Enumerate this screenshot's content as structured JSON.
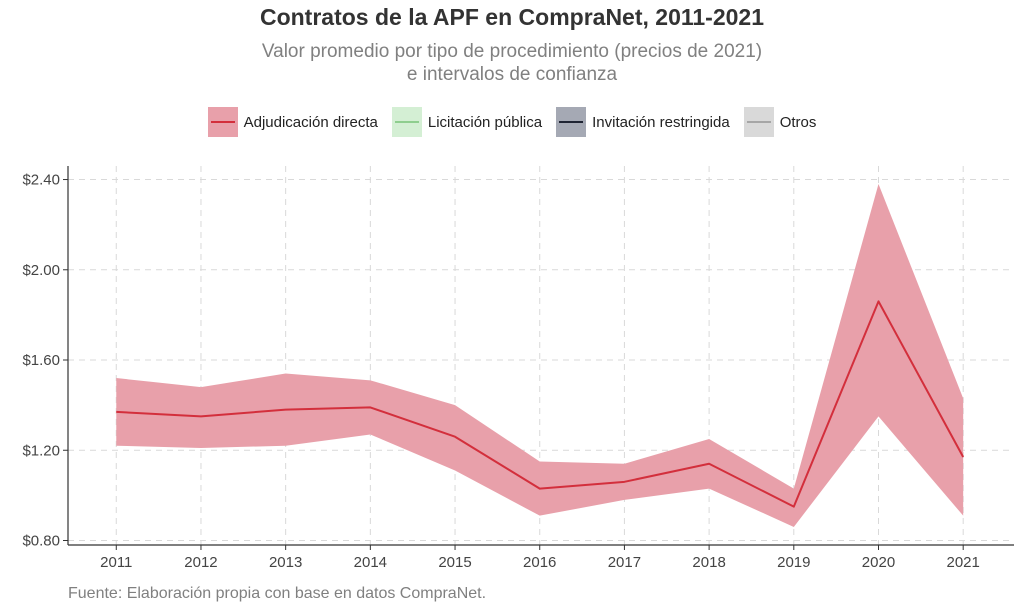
{
  "header": {
    "title": "Contratos de la APF en CompraNet, 2011-2021",
    "subtitle_line1": "Valor promedio por tipo de procedimiento (precios de 2021)",
    "subtitle_line2": "e intervalos de confianza"
  },
  "legend": {
    "items": [
      {
        "label": "Adjudicación directa",
        "fill": "#e8a0aa",
        "line": "#d32f3c"
      },
      {
        "label": "Licitación pública",
        "fill": "#d4efd4",
        "line": "#8fce8f"
      },
      {
        "label": "Invitación restringida",
        "fill": "#a5a9b4",
        "line": "#1f2433"
      },
      {
        "label": "Otros",
        "fill": "#d9d9d9",
        "line": "#a6a6a6"
      }
    ]
  },
  "footer": {
    "source": "Fuente: Elaboración propia con base en datos CompraNet."
  },
  "chart_data": {
    "type": "line",
    "title": "Contratos de la APF en CompraNet, 2011-2021",
    "subtitle": "Valor promedio por tipo de procedimiento (precios de 2021) e intervalos de confianza",
    "xlabel": "",
    "ylabel": "",
    "x": [
      2011,
      2012,
      2013,
      2014,
      2015,
      2016,
      2017,
      2018,
      2019,
      2020,
      2021
    ],
    "x_tick_labels": [
      "2011",
      "2012",
      "2013",
      "2014",
      "2015",
      "2016",
      "2017",
      "2018",
      "2019",
      "2020",
      "2021"
    ],
    "y_ticks": [
      0.8,
      1.2,
      1.6,
      2.0,
      2.4
    ],
    "y_tick_labels": [
      "$0.80",
      "$1.20",
      "$1.60",
      "$2.00",
      "$2.40"
    ],
    "ylim": [
      0.78,
      2.46
    ],
    "grid": true,
    "legend_position": "top",
    "series": [
      {
        "name": "Adjudicación directa",
        "color": "#d32f3c",
        "band_color": "#e8a0aa",
        "values": [
          1.37,
          1.35,
          1.38,
          1.39,
          1.26,
          1.03,
          1.06,
          1.14,
          0.95,
          1.86,
          1.17
        ],
        "upper": [
          1.52,
          1.48,
          1.54,
          1.51,
          1.4,
          1.15,
          1.14,
          1.25,
          1.03,
          2.38,
          1.43
        ],
        "lower": [
          1.22,
          1.21,
          1.22,
          1.27,
          1.11,
          0.91,
          0.98,
          1.03,
          0.86,
          1.35,
          0.91
        ]
      }
    ]
  }
}
